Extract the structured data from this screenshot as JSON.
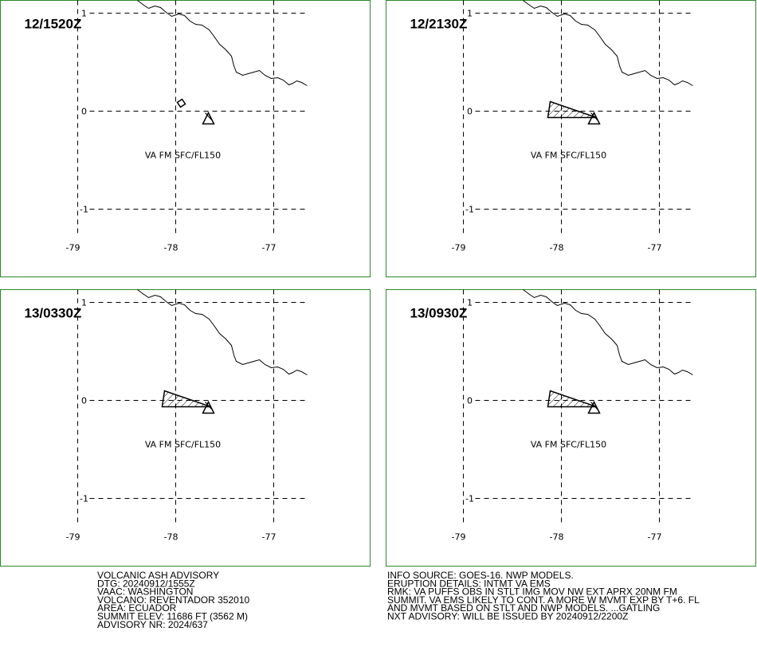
{
  "panels": [
    {
      "time": "12/1520Z",
      "label": "VA FM SFC/FL150"
    },
    {
      "time": "12/2130Z",
      "label": "VA FM SFC/FL150"
    },
    {
      "time": "13/0330Z",
      "label": "VA FM SFC/FL150"
    },
    {
      "time": "13/0930Z",
      "label": "VA FM SFC/FL150"
    }
  ],
  "axes": {
    "lon_ticks": [
      -79,
      -78,
      -77
    ],
    "lat_ticks": [
      1,
      0,
      -1
    ]
  },
  "advisory_left": [
    "VOLCANIC ASH ADVISORY",
    "DTG: 20240912/1555Z",
    "VAAC: WASHINGTON",
    "VOLCANO: REVENTADOR 352010",
    "AREA: ECUADOR",
    "SUMMIT ELEV: 11686 FT (3562 M)",
    "ADVISORY NR: 2024/637"
  ],
  "advisory_right": [
    "INFO SOURCE: GOES-16. NWP MODELS.",
    "ERUPTION DETAILS: INTMT VA EMS",
    "RMK: VA PUFFS OBS IN STLT IMG MOV NW EXT APRX 20NM FM",
    "SUMMIT. VA EMS LIKELY TO CONT. A MORE W MVMT EXP BY T+6. FL",
    "AND MVMT BASED ON STLT AND NWP MODELS. ...GATLING",
    "NXT ADVISORY: WILL BE ISSUED BY 20240912/2200Z"
  ]
}
